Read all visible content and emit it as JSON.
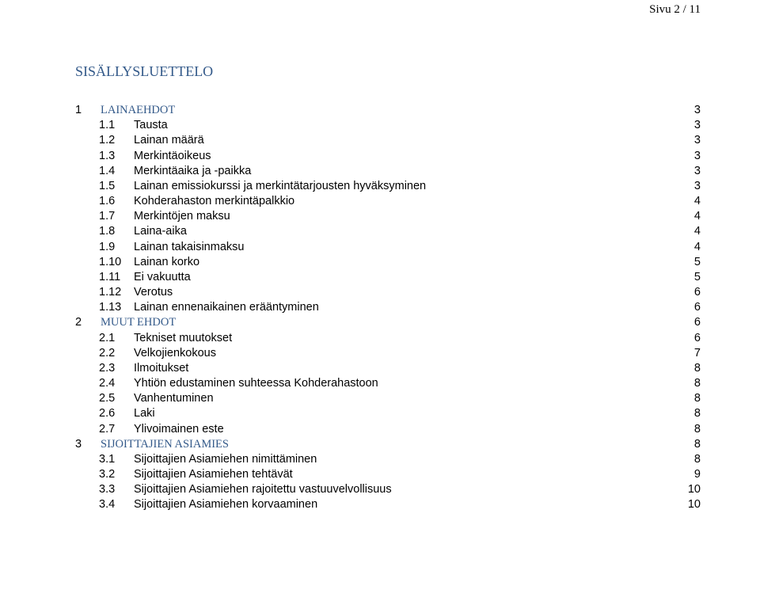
{
  "page_header": "Sivu 2 / 11",
  "toc_title": "SISÄLLYSLUETTELO",
  "colors": {
    "heading": "#345a8a",
    "text": "#000000",
    "background": "#ffffff"
  },
  "toc": [
    {
      "level": 1,
      "num": "1",
      "label": "LAINAEHDOT",
      "page": "3",
      "colored": true
    },
    {
      "level": 2,
      "num": "1.1",
      "label": "Tausta",
      "page": "3"
    },
    {
      "level": 2,
      "num": "1.2",
      "label": "Lainan määrä",
      "page": "3"
    },
    {
      "level": 2,
      "num": "1.3",
      "label": "Merkintäoikeus",
      "page": "3"
    },
    {
      "level": 2,
      "num": "1.4",
      "label": "Merkintäaika ja -paikka",
      "page": "3"
    },
    {
      "level": 2,
      "num": "1.5",
      "label": "Lainan emissiokurssi ja merkintätarjousten hyväksyminen",
      "page": "3"
    },
    {
      "level": 2,
      "num": "1.6",
      "label": "Kohderahaston merkintäpalkkio",
      "page": "4"
    },
    {
      "level": 2,
      "num": "1.7",
      "label": "Merkintöjen maksu",
      "page": "4"
    },
    {
      "level": 2,
      "num": "1.8",
      "label": "Laina-aika",
      "page": "4"
    },
    {
      "level": 2,
      "num": "1.9",
      "label": "Lainan takaisinmaksu",
      "page": "4"
    },
    {
      "level": 2,
      "num": "1.10",
      "label": "Lainan korko",
      "page": "5"
    },
    {
      "level": 2,
      "num": "1.11",
      "label": "Ei vakuutta",
      "page": "5"
    },
    {
      "level": 2,
      "num": "1.12",
      "label": "Verotus",
      "page": "6"
    },
    {
      "level": 2,
      "num": "1.13",
      "label": "Lainan ennenaikainen erääntyminen",
      "page": "6"
    },
    {
      "level": 1,
      "num": "2",
      "label": "MUUT EHDOT",
      "page": "6",
      "colored": true
    },
    {
      "level": 2,
      "num": "2.1",
      "label": "Tekniset muutokset",
      "page": "6"
    },
    {
      "level": 2,
      "num": "2.2",
      "label": "Velkojienkokous",
      "page": "7"
    },
    {
      "level": 2,
      "num": "2.3",
      "label": "Ilmoitukset",
      "page": "8"
    },
    {
      "level": 2,
      "num": "2.4",
      "label": "Yhtiön edustaminen suhteessa Kohderahastoon",
      "page": "8"
    },
    {
      "level": 2,
      "num": "2.5",
      "label": "Vanhentuminen",
      "page": "8"
    },
    {
      "level": 2,
      "num": "2.6",
      "label": "Laki",
      "page": "8"
    },
    {
      "level": 2,
      "num": "2.7",
      "label": "Ylivoimainen este",
      "page": "8"
    },
    {
      "level": 1,
      "num": "3",
      "label": "SIJOITTAJIEN ASIAMIES",
      "page": "8",
      "colored": true
    },
    {
      "level": 2,
      "num": "3.1",
      "label": "Sijoittajien Asiamiehen nimittäminen",
      "page": "8"
    },
    {
      "level": 2,
      "num": "3.2",
      "label": "Sijoittajien Asiamiehen tehtävät",
      "page": "9"
    },
    {
      "level": 2,
      "num": "3.3",
      "label": "Sijoittajien Asiamiehen rajoitettu vastuuvelvollisuus",
      "page": "10"
    },
    {
      "level": 2,
      "num": "3.4",
      "label": "Sijoittajien Asiamiehen korvaaminen",
      "page": "10"
    }
  ]
}
